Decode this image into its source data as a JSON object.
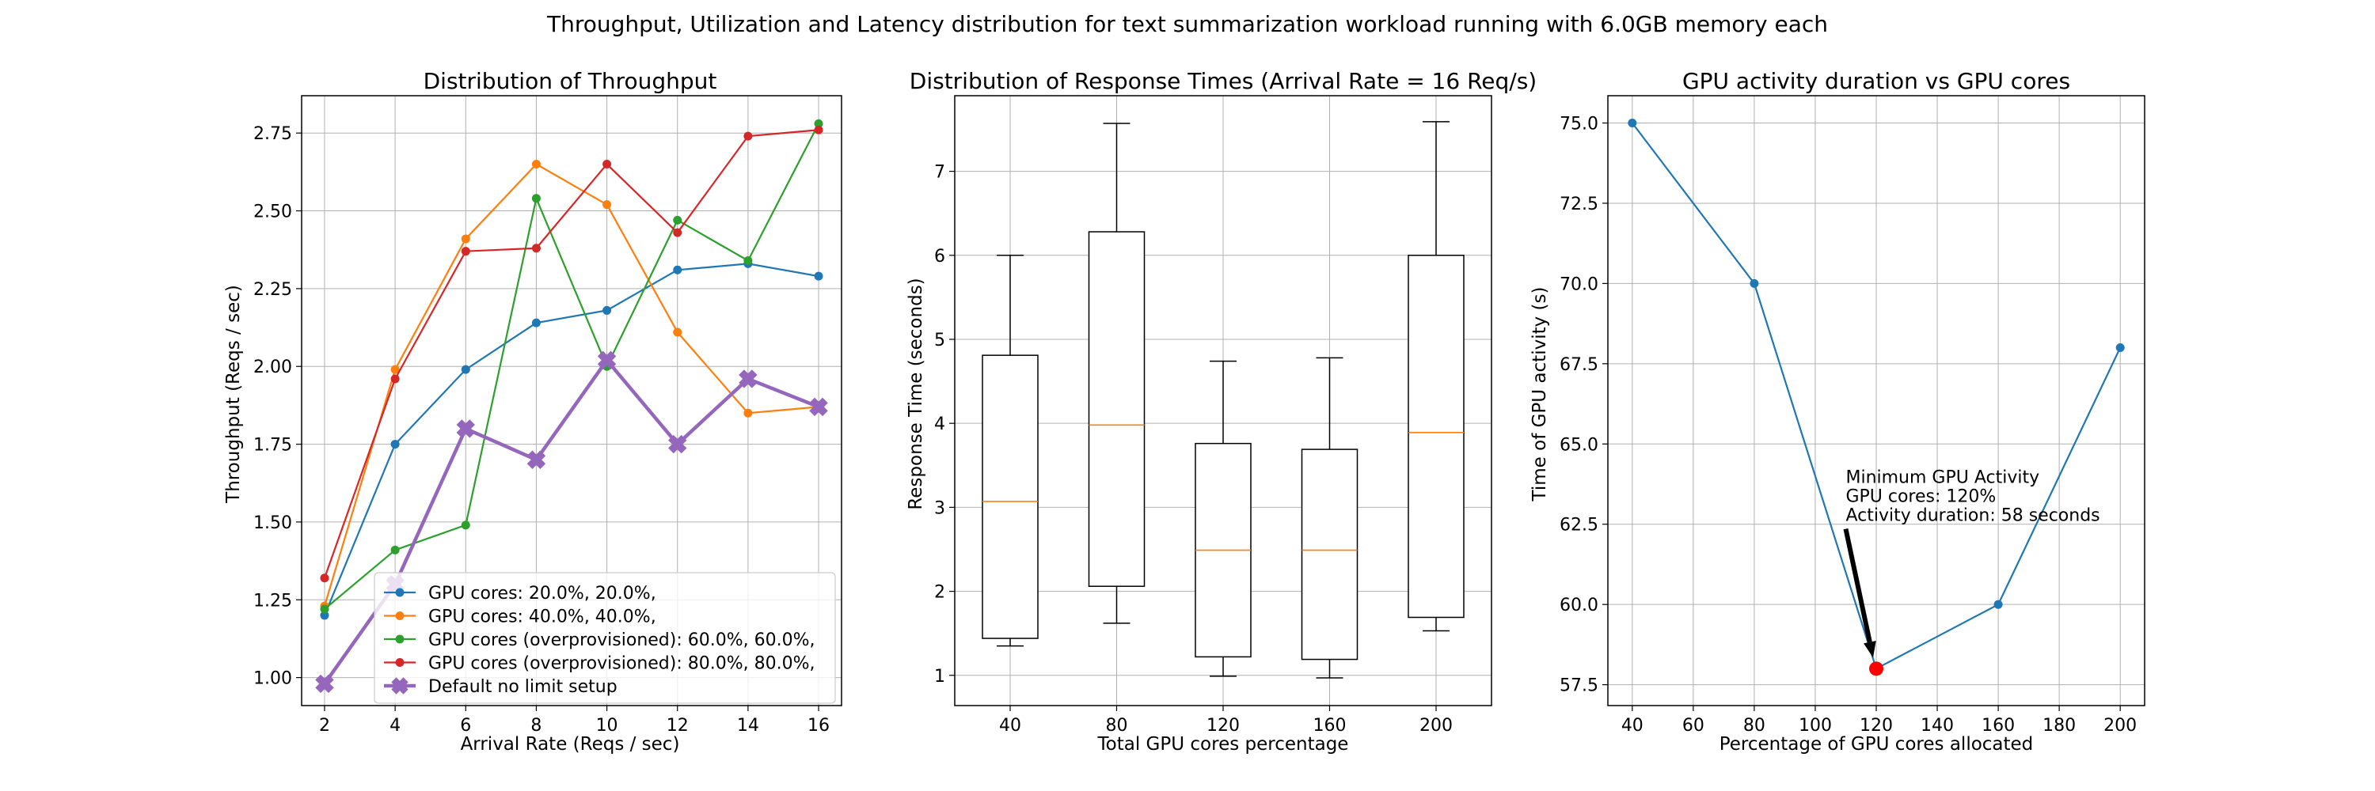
{
  "suptitle": "Throughput, Utilization and Latency distribution for text summarization workload running with 6.0GB memory each",
  "chart_data": [
    {
      "type": "line",
      "title": "Distribution of Throughput",
      "xlabel": "Arrival Rate (Reqs / sec)",
      "ylabel": "Throughput (Reqs / sec)",
      "x": [
        2,
        4,
        6,
        8,
        10,
        12,
        14,
        16
      ],
      "xlim": [
        1.35,
        16.65
      ],
      "ylim": [
        0.91,
        2.87
      ],
      "xticks": [
        "2",
        "4",
        "6",
        "8",
        "10",
        "12",
        "14",
        "16"
      ],
      "yticks": [
        "1.00",
        "1.25",
        "1.50",
        "1.75",
        "2.00",
        "2.25",
        "2.50",
        "2.75"
      ],
      "ytick_values": [
        1.0,
        1.25,
        1.5,
        1.75,
        2.0,
        2.25,
        2.5,
        2.75
      ],
      "grid": true,
      "legend_position": "lower right",
      "series": [
        {
          "name": "GPU cores: 20.0%, 20.0%,",
          "color": "#1f77b4",
          "marker": "circle",
          "values": [
            1.2,
            1.75,
            1.99,
            2.14,
            2.18,
            2.31,
            2.33,
            2.29
          ]
        },
        {
          "name": "GPU cores: 40.0%, 40.0%,",
          "color": "#ff7f0e",
          "marker": "circle",
          "values": [
            1.23,
            1.99,
            2.41,
            2.65,
            2.52,
            2.11,
            1.85,
            1.87
          ]
        },
        {
          "name": "GPU cores (overprovisioned): 60.0%, 60.0%,",
          "color": "#2ca02c",
          "marker": "circle",
          "values": [
            1.22,
            1.41,
            1.49,
            2.54,
            2.0,
            2.47,
            2.34,
            2.78
          ]
        },
        {
          "name": "GPU cores (overprovisioned): 80.0%, 80.0%,",
          "color": "#d62728",
          "marker": "circle",
          "values": [
            1.32,
            1.96,
            2.37,
            2.38,
            2.65,
            2.43,
            2.74,
            2.76
          ]
        },
        {
          "name": "Default no limit setup",
          "color": "#9467bd",
          "marker": "x-filled",
          "values": [
            0.98,
            1.3,
            1.8,
            1.7,
            2.02,
            1.75,
            1.96,
            1.87
          ]
        }
      ]
    },
    {
      "type": "box",
      "title": "Distribution of Response Times (Arrival Rate = 16 Req/s)",
      "xlabel": "Total GPU cores percentage",
      "ylabel": "Response Time (seconds)",
      "categories": [
        "40",
        "80",
        "120",
        "160",
        "200"
      ],
      "ylim": [
        0.64,
        7.9
      ],
      "yticks": [
        "1",
        "2",
        "3",
        "4",
        "5",
        "6",
        "7"
      ],
      "ytick_values": [
        1,
        2,
        3,
        4,
        5,
        6,
        7
      ],
      "grid": true,
      "median_color": "#ff7f0e",
      "boxes": [
        {
          "whisker_low": 1.35,
          "q1": 1.44,
          "median": 3.07,
          "q3": 4.81,
          "whisker_high": 6.0
        },
        {
          "whisker_low": 1.62,
          "q1": 2.06,
          "median": 3.98,
          "q3": 6.28,
          "whisker_high": 7.57
        },
        {
          "whisker_low": 0.99,
          "q1": 1.22,
          "median": 2.49,
          "q3": 3.76,
          "whisker_high": 4.74
        },
        {
          "whisker_low": 0.97,
          "q1": 1.19,
          "median": 2.49,
          "q3": 3.69,
          "whisker_high": 4.78
        },
        {
          "whisker_low": 1.53,
          "q1": 1.69,
          "median": 3.89,
          "q3": 6.0,
          "whisker_high": 7.59
        }
      ]
    },
    {
      "type": "line",
      "title": "GPU activity duration vs GPU cores",
      "xlabel": "Percentage of GPU cores allocated",
      "ylabel": "Time of GPU activity (s)",
      "x": [
        40,
        80,
        120,
        160,
        200
      ],
      "xlim": [
        32,
        208
      ],
      "ylim": [
        56.85,
        75.85
      ],
      "xticks": [
        "40",
        "60",
        "80",
        "100",
        "120",
        "140",
        "160",
        "180",
        "200"
      ],
      "xtick_values": [
        40,
        60,
        80,
        100,
        120,
        140,
        160,
        180,
        200
      ],
      "yticks": [
        "57.5",
        "60.0",
        "62.5",
        "65.0",
        "67.5",
        "70.0",
        "72.5",
        "75.0"
      ],
      "ytick_values": [
        57.5,
        60.0,
        62.5,
        65.0,
        67.5,
        70.0,
        72.5,
        75.0
      ],
      "grid": true,
      "series": [
        {
          "color": "#1f77b4",
          "marker": "circle",
          "values": [
            75.0,
            70.0,
            58.0,
            60.0,
            68.0
          ]
        }
      ],
      "highlight": {
        "x": 120,
        "y": 58.0,
        "color": "#ff0000"
      },
      "annotation": {
        "lines": [
          "Minimum GPU Activity",
          "GPU cores: 120%",
          "Activity duration: 58 seconds"
        ],
        "text_x": 110,
        "text_y": 62.6
      }
    }
  ]
}
